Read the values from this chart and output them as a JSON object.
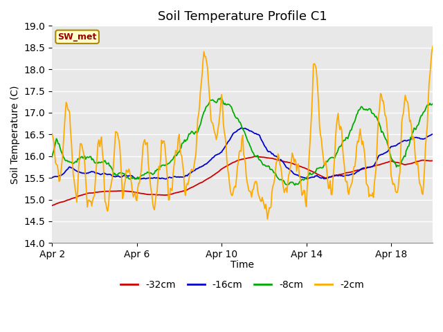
{
  "title": "Soil Temperature Profile C1",
  "xlabel": "Time",
  "ylabel": "Soil Temperature (C)",
  "ylim": [
    14.0,
    19.0
  ],
  "yticks": [
    14.0,
    14.5,
    15.0,
    15.5,
    16.0,
    16.5,
    17.0,
    17.5,
    18.0,
    18.5,
    19.0
  ],
  "xtick_labels": [
    "Apr 2",
    "Apr 6",
    "Apr 10",
    "Apr 14",
    "Apr 18"
  ],
  "xtick_positions": [
    0,
    96,
    192,
    288,
    384
  ],
  "total_points": 432,
  "legend_labels": [
    "-32cm",
    "-16cm",
    "-8cm",
    "-2cm"
  ],
  "colors": {
    "red": "#cc0000",
    "blue": "#0000cc",
    "green": "#00aa00",
    "orange": "#ffaa00"
  },
  "annotation_text": "SW_met",
  "annotation_color": "#990000",
  "annotation_bg": "#ffffcc",
  "annotation_border": "#aa8800",
  "background_color": "#e8e8e8",
  "grid_color": "#ffffff",
  "title_fontsize": 13,
  "axis_fontsize": 10,
  "legend_fontsize": 10
}
